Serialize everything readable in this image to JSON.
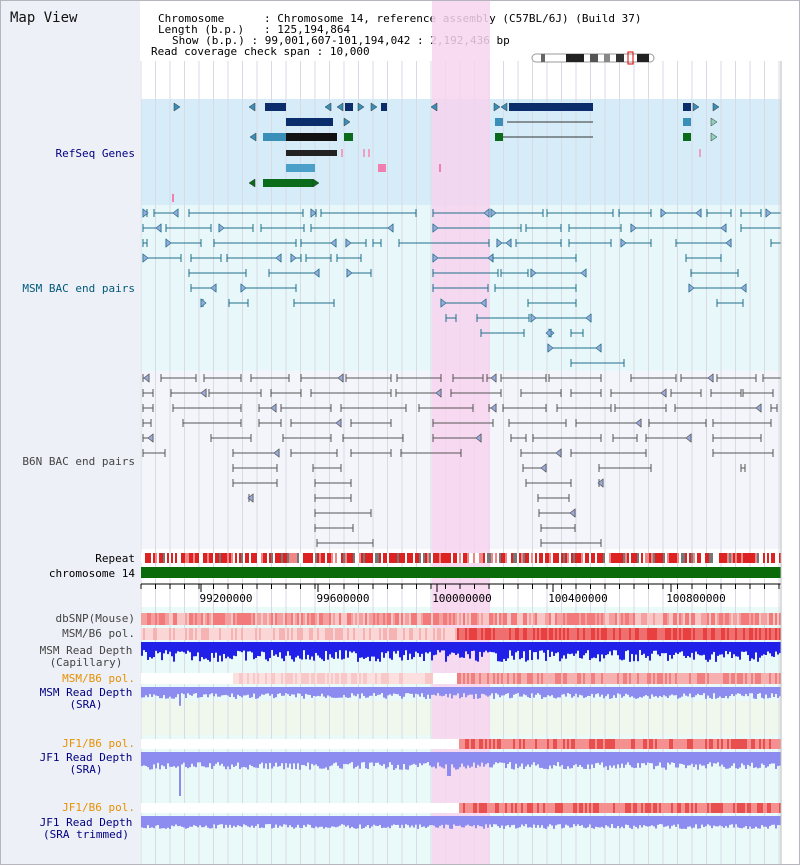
{
  "title": "Map View",
  "info": {
    "chromosome_key": "Chromosome",
    "chromosome_val": "Chromosome 14, reference assembly (C57BL/6J) (Build 37)",
    "length_key": "Length (b.p.)",
    "length_val": "125,194,864",
    "show_key": "Show (b.p.)",
    "show_val": "99,001,607-101,194,042 : 2,192,436 bp",
    "coverage_key": "Read coverage check span",
    "coverage_val": "10,000"
  },
  "tracks": {
    "refseq": "RefSeq Genes",
    "msm_bac": "MSM BAC end pairs",
    "b6n_bac": "B6N BAC end pairs",
    "repeat": "Repeat",
    "chromosome": "chromosome 14",
    "dbsnp": "dbSNP(Mouse)",
    "msm_b6_pol": "MSM/B6 pol.",
    "msm_depth_cap_1": "MSM Read Depth",
    "msm_depth_cap_2": "(Capillary)",
    "msm_b6_pol2": "MSM/B6 pol.",
    "msm_depth_sra_1": "MSM Read Depth",
    "msm_depth_sra_2": "(SRA)",
    "jf1_b6_pol": "JF1/B6 pol.",
    "jf1_depth_sra_1": "JF1 Read Depth",
    "jf1_depth_sra_2": "(SRA)",
    "jf1_b6_pol2": "JF1/B6 pol.",
    "jf1_depth_trim_1": "JF1 Read Depth",
    "jf1_depth_trim_2": "(SRA trimmed)"
  },
  "axis": {
    "ticks": [
      "99200000",
      "99600000",
      "100000000",
      "100400000",
      "100800000"
    ]
  },
  "colors": {
    "highlight": "#f7d4ef",
    "refseq_bg": "#d6ecf8",
    "msm_bac_bg": "#e8f8fa",
    "gene_dark": "#0b2d6b",
    "gene_mid": "#3a8fb8",
    "gene_green": "#0a6b1a",
    "msm_line": "#1f6f8b",
    "b6n_line": "#555555",
    "chrom_green": "#0a6b0a",
    "depth_blue": "#2020e8",
    "depth_lblue": "#8c8cf0",
    "label_navy": "#000080",
    "label_teal": "#005a7a",
    "label_orange": "#e69000"
  }
}
